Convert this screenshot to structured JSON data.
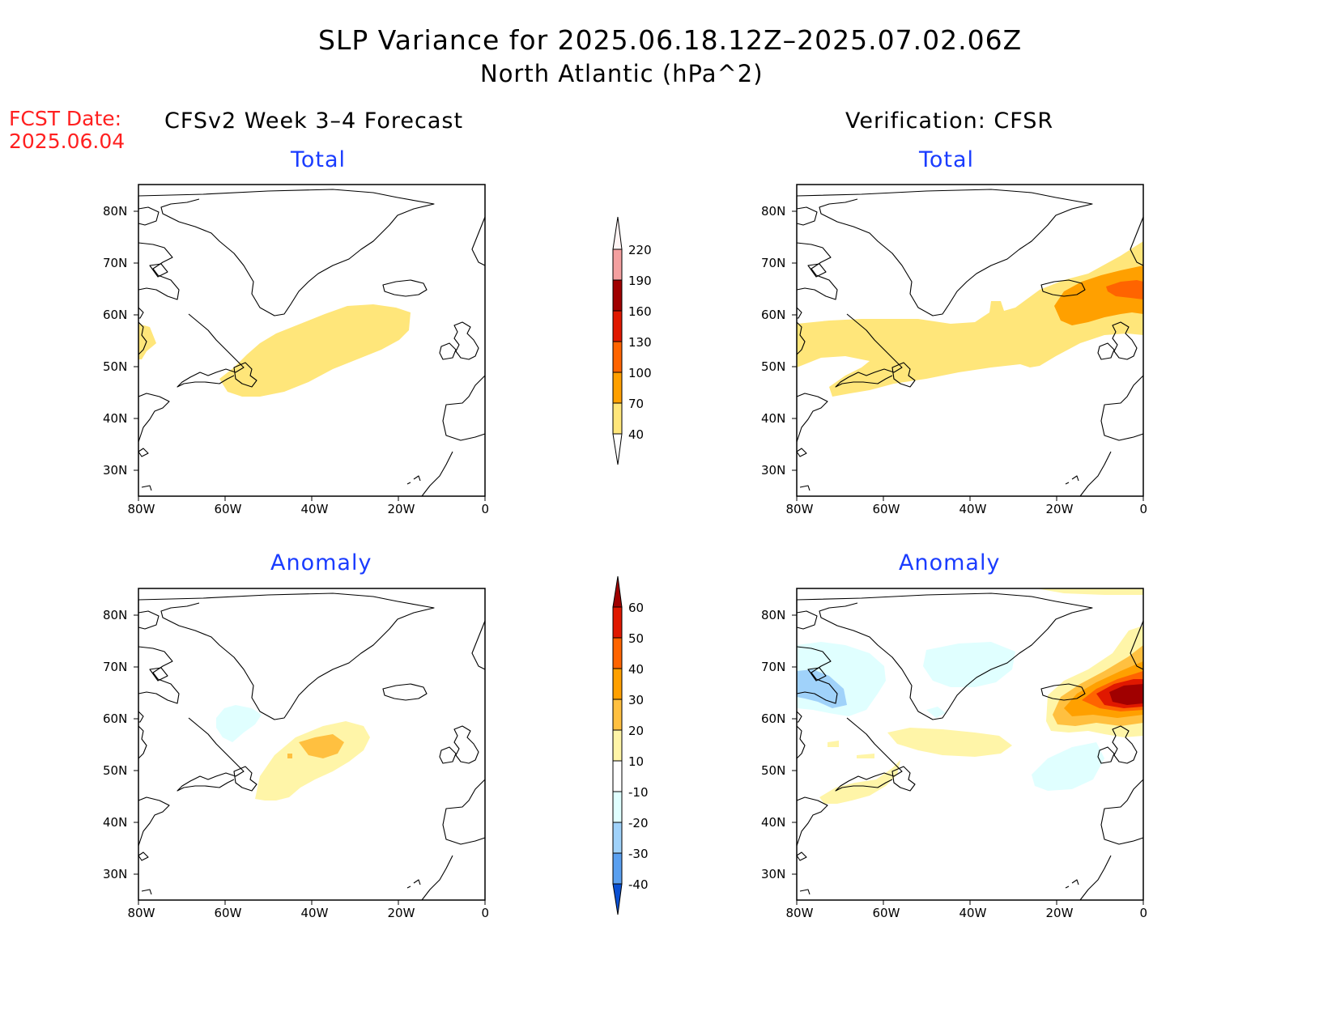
{
  "header": {
    "title": "SLP Variance for 2025.06.18.12Z–2025.07.02.06Z",
    "subtitle": "North Atlantic (hPa^2)",
    "fcst_label": "FCST Date:",
    "fcst_date": "2025.06.04"
  },
  "columns": {
    "left": "CFSv2 Week 3–4 Forecast",
    "right": "Verification: CFSR"
  },
  "panels": {
    "top_left": "Total",
    "top_right": "Total",
    "bottom_left": "Anomaly",
    "bottom_right": "Anomaly"
  },
  "axes": {
    "lon_ticks": [
      "80W",
      "60W",
      "40W",
      "20W",
      "0"
    ],
    "lat_ticks": [
      "80N",
      "70N",
      "60N",
      "50N",
      "40N",
      "30N"
    ],
    "lon_range": [
      -80,
      0
    ],
    "lat_range": [
      25,
      85
    ]
  },
  "colorbar_total": {
    "labels": [
      "220",
      "190",
      "160",
      "130",
      "100",
      "70",
      "40"
    ],
    "colors": [
      "#fdd8d8",
      "#f4a0a0",
      "#a00000",
      "#e01800",
      "#ff6400",
      "#ffa000",
      "#ffe67a"
    ]
  },
  "colorbar_anomaly": {
    "labels": [
      "60",
      "50",
      "40",
      "30",
      "20",
      "10",
      "-10",
      "-20",
      "-30",
      "-40"
    ],
    "colors_top": [
      "#a00000",
      "#e01800",
      "#ff6400",
      "#ffa000",
      "#ffc040",
      "#fff5a8",
      "#ffffff",
      "#e0ffff",
      "#a0d2fa",
      "#5aa0f0",
      "#1e6ee6",
      "#0a50d2"
    ]
  },
  "chart_data": [
    {
      "type": "heatmap",
      "title": "Total",
      "subtitle": "CFSv2 Week 3–4 Forecast",
      "regions": [
        {
          "level": "40-70",
          "description": "band from Newfoundland (~52W 47N) to ~20W 60N"
        },
        {
          "level": "40-70",
          "description": "small area near Labrador coast ~79W 55N"
        }
      ]
    },
    {
      "type": "heatmap",
      "title": "Total",
      "subtitle": "Verification: CFSR",
      "regions": [
        {
          "level": "40-70",
          "description": "broad band from Labrador 80W 55N across to Iceland/Norway 0E 70N"
        },
        {
          "level": "70-100",
          "description": "area south and east of Iceland ~15W-0 60-67N"
        },
        {
          "level": "100-130",
          "description": "core near 5W 65N"
        }
      ]
    },
    {
      "type": "heatmap",
      "title": "Anomaly",
      "subtitle": "CFSv2 Week 3–4 Forecast",
      "regions": [
        {
          "level": "10-20",
          "description": "area from ~52W 46N to ~28W 59N"
        },
        {
          "level": "20-30",
          "description": "core near 40W 55N"
        },
        {
          "level": "-10 to -20",
          "description": "small area near 55W 62N"
        }
      ]
    },
    {
      "type": "heatmap",
      "title": "Anomaly",
      "subtitle": "Verification: CFSR",
      "regions": [
        {
          "level": "50-60+",
          "description": "core near 5W 65N"
        },
        {
          "level": "10-50",
          "description": "surrounding area 15W-0 58-72N"
        },
        {
          "level": "-10 to -30",
          "description": "Baffin Island / Davis Strait ~75W 65N"
        },
        {
          "level": "-10 to -20",
          "description": "east Greenland area and near 20W 50N"
        },
        {
          "level": "10-20",
          "description": "band 45W-25W 56N and near Nova Scotia 65W 45N"
        }
      ]
    }
  ]
}
